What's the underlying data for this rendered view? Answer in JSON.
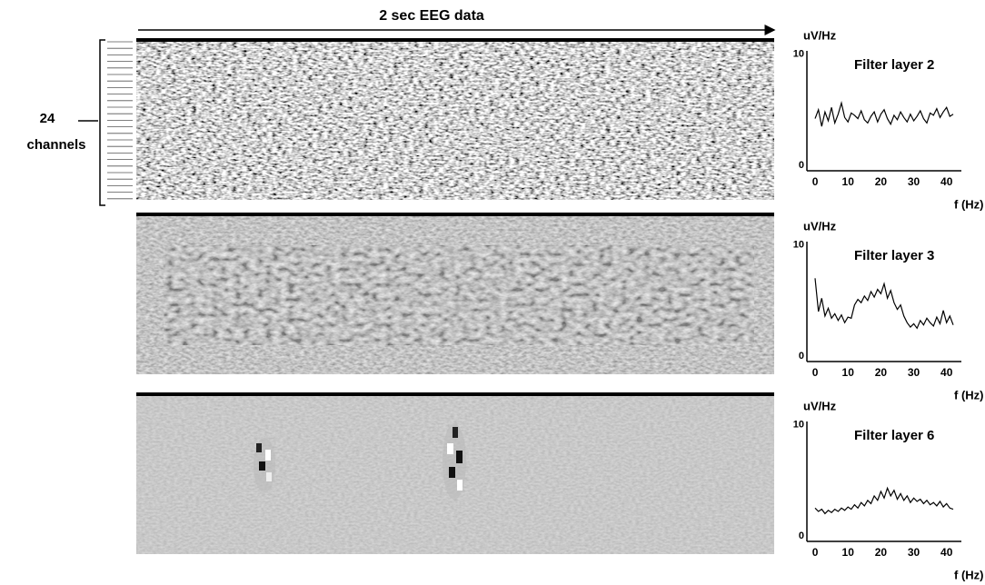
{
  "figure": {
    "header": "2 sec EEG data",
    "channel_count": "24",
    "channel_label": "channels"
  },
  "chart_data": [
    {
      "type": "line",
      "title": "Filter layer 2",
      "y_label": "uV/Hz",
      "x_label": "f (Hz)",
      "color": "#000000",
      "x": [
        0,
        1,
        2,
        3,
        4,
        5,
        6,
        7,
        8,
        9,
        10,
        11,
        12,
        13,
        14,
        15,
        16,
        17,
        18,
        19,
        20,
        21,
        22,
        23,
        24,
        25,
        26,
        27,
        28,
        29,
        30,
        31,
        32,
        33,
        34,
        35,
        36,
        37,
        38,
        39,
        40,
        41,
        42
      ],
      "values": [
        4.2,
        5.0,
        3.5,
        4.8,
        4.0,
        5.2,
        3.8,
        4.6,
        5.6,
        4.3,
        3.9,
        4.7,
        4.5,
        4.2,
        4.9,
        4.1,
        3.8,
        4.4,
        4.8,
        3.9,
        4.6,
        5.0,
        4.2,
        3.7,
        4.5,
        4.1,
        4.8,
        4.3,
        3.9,
        4.6,
        4.0,
        4.4,
        4.9,
        4.2,
        3.8,
        4.7,
        4.5,
        5.1,
        4.3,
        4.8,
        5.2,
        4.4,
        4.6
      ],
      "xlim": [
        -2.5,
        44.5
      ],
      "ylim": [
        -0.5,
        10.3
      ],
      "xticks": [
        0,
        10,
        20,
        30,
        40
      ],
      "yticks": [
        0,
        10
      ]
    },
    {
      "type": "line",
      "title": "Filter layer 3",
      "y_label": "uV/Hz",
      "x_label": "f (Hz)",
      "color": "#000000",
      "x": [
        0,
        1,
        2,
        3,
        4,
        5,
        6,
        7,
        8,
        9,
        10,
        11,
        12,
        13,
        14,
        15,
        16,
        17,
        18,
        19,
        20,
        21,
        22,
        23,
        24,
        25,
        26,
        27,
        28,
        29,
        30,
        31,
        32,
        33,
        34,
        35,
        36,
        37,
        38,
        39,
        40,
        41,
        42
      ],
      "values": [
        7.0,
        4.0,
        5.2,
        3.6,
        4.3,
        3.4,
        3.8,
        3.2,
        3.7,
        3.0,
        3.5,
        3.4,
        4.6,
        5.1,
        4.8,
        5.4,
        5.0,
        5.8,
        5.3,
        6.0,
        5.6,
        6.5,
        5.2,
        5.9,
        4.8,
        4.2,
        4.6,
        3.6,
        3.0,
        2.6,
        2.9,
        2.5,
        3.2,
        2.8,
        3.4,
        3.0,
        2.7,
        3.5,
        2.9,
        4.1,
        3.0,
        3.6,
        2.8
      ],
      "xlim": [
        -2.5,
        44.5
      ],
      "ylim": [
        -0.5,
        10.3
      ],
      "xticks": [
        0,
        10,
        20,
        30,
        40
      ],
      "yticks": [
        0,
        10
      ]
    },
    {
      "type": "line",
      "title": "Filter layer 6",
      "y_label": "uV/Hz",
      "x_label": "f (Hz)",
      "color": "#000000",
      "x": [
        0,
        1,
        2,
        3,
        4,
        5,
        6,
        7,
        8,
        9,
        10,
        11,
        12,
        13,
        14,
        15,
        16,
        17,
        18,
        19,
        20,
        21,
        22,
        23,
        24,
        25,
        26,
        27,
        28,
        29,
        30,
        31,
        32,
        33,
        34,
        35,
        36,
        37,
        38,
        39,
        40,
        41,
        42
      ],
      "values": [
        2.5,
        2.2,
        2.4,
        2.0,
        2.3,
        2.1,
        2.4,
        2.2,
        2.5,
        2.3,
        2.6,
        2.4,
        2.8,
        2.5,
        3.0,
        2.7,
        3.2,
        2.9,
        3.6,
        3.2,
        4.0,
        3.4,
        4.3,
        3.6,
        4.1,
        3.3,
        3.8,
        3.2,
        3.6,
        3.0,
        3.4,
        3.1,
        3.3,
        2.9,
        3.2,
        2.8,
        3.0,
        2.7,
        3.1,
        2.6,
        2.9,
        2.5,
        2.4
      ],
      "xlim": [
        -2.5,
        44.5
      ],
      "ylim": [
        -0.5,
        10.3
      ],
      "xticks": [
        0,
        10,
        20,
        30,
        40
      ],
      "yticks": [
        0,
        10
      ]
    }
  ]
}
